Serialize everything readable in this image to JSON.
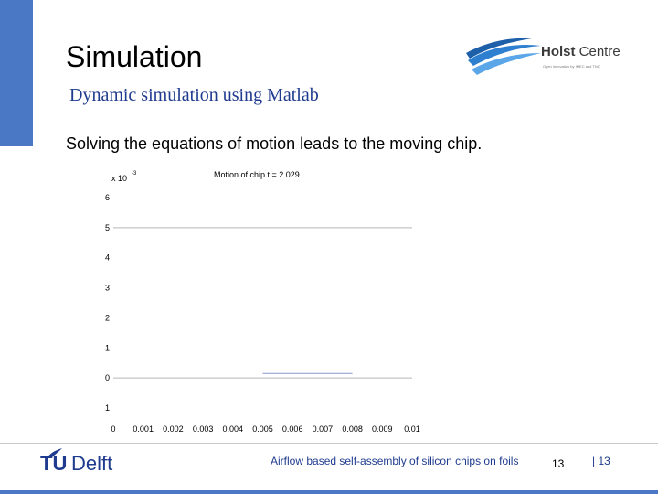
{
  "slide": {
    "title": "Simulation",
    "subtitle": "Dynamic simulation using Matlab",
    "bullet": "Solving the equations of motion leads to the moving chip."
  },
  "logo": {
    "brand_bold": "Holst",
    "brand_rest": " Centre",
    "tagline": "Open innovation by IMEC and TNO"
  },
  "footer": {
    "org": "TUDelft",
    "org_tu": "TU",
    "org_rest": "Delft",
    "text": "Airflow based self-assembly of silicon chips on foils",
    "page": "13",
    "page_right": "| 13"
  },
  "colors": {
    "accent": "#4a78c4",
    "text_blue": "#1f3b8f"
  },
  "chart_data": {
    "type": "line",
    "title": "Motion of chip t = 2.029",
    "y_scale_label": "x 10",
    "y_scale_exp": "-3",
    "x_ticks": [
      "0",
      "0.001",
      "0.002",
      "0.003",
      "0.004",
      "0.005",
      "0.006",
      "0.007",
      "0.008",
      "0.009",
      "0.01"
    ],
    "y_ticks": [
      {
        "label": "6",
        "value": 6
      },
      {
        "label": "5",
        "value": 5
      },
      {
        "label": "4",
        "value": 4
      },
      {
        "label": "3",
        "value": 3
      },
      {
        "label": "2",
        "value": 2
      },
      {
        "label": "1",
        "value": 1
      },
      {
        "label": "0",
        "value": 0
      },
      {
        "label": "1",
        "value": -1
      }
    ],
    "xlim": [
      0,
      0.01
    ],
    "ylim": [
      -1,
      6
    ],
    "series": [
      {
        "values": [
          [
            0,
            5
          ],
          [
            0.01,
            5
          ]
        ],
        "color": "#b8b8b8"
      },
      {
        "values": [
          [
            0,
            0
          ],
          [
            0.01,
            0
          ]
        ],
        "color": "#b8b8b8"
      },
      {
        "values": [
          [
            0.005,
            0.15
          ],
          [
            0.008,
            0.15
          ]
        ],
        "color": "#8a96c8"
      }
    ]
  }
}
